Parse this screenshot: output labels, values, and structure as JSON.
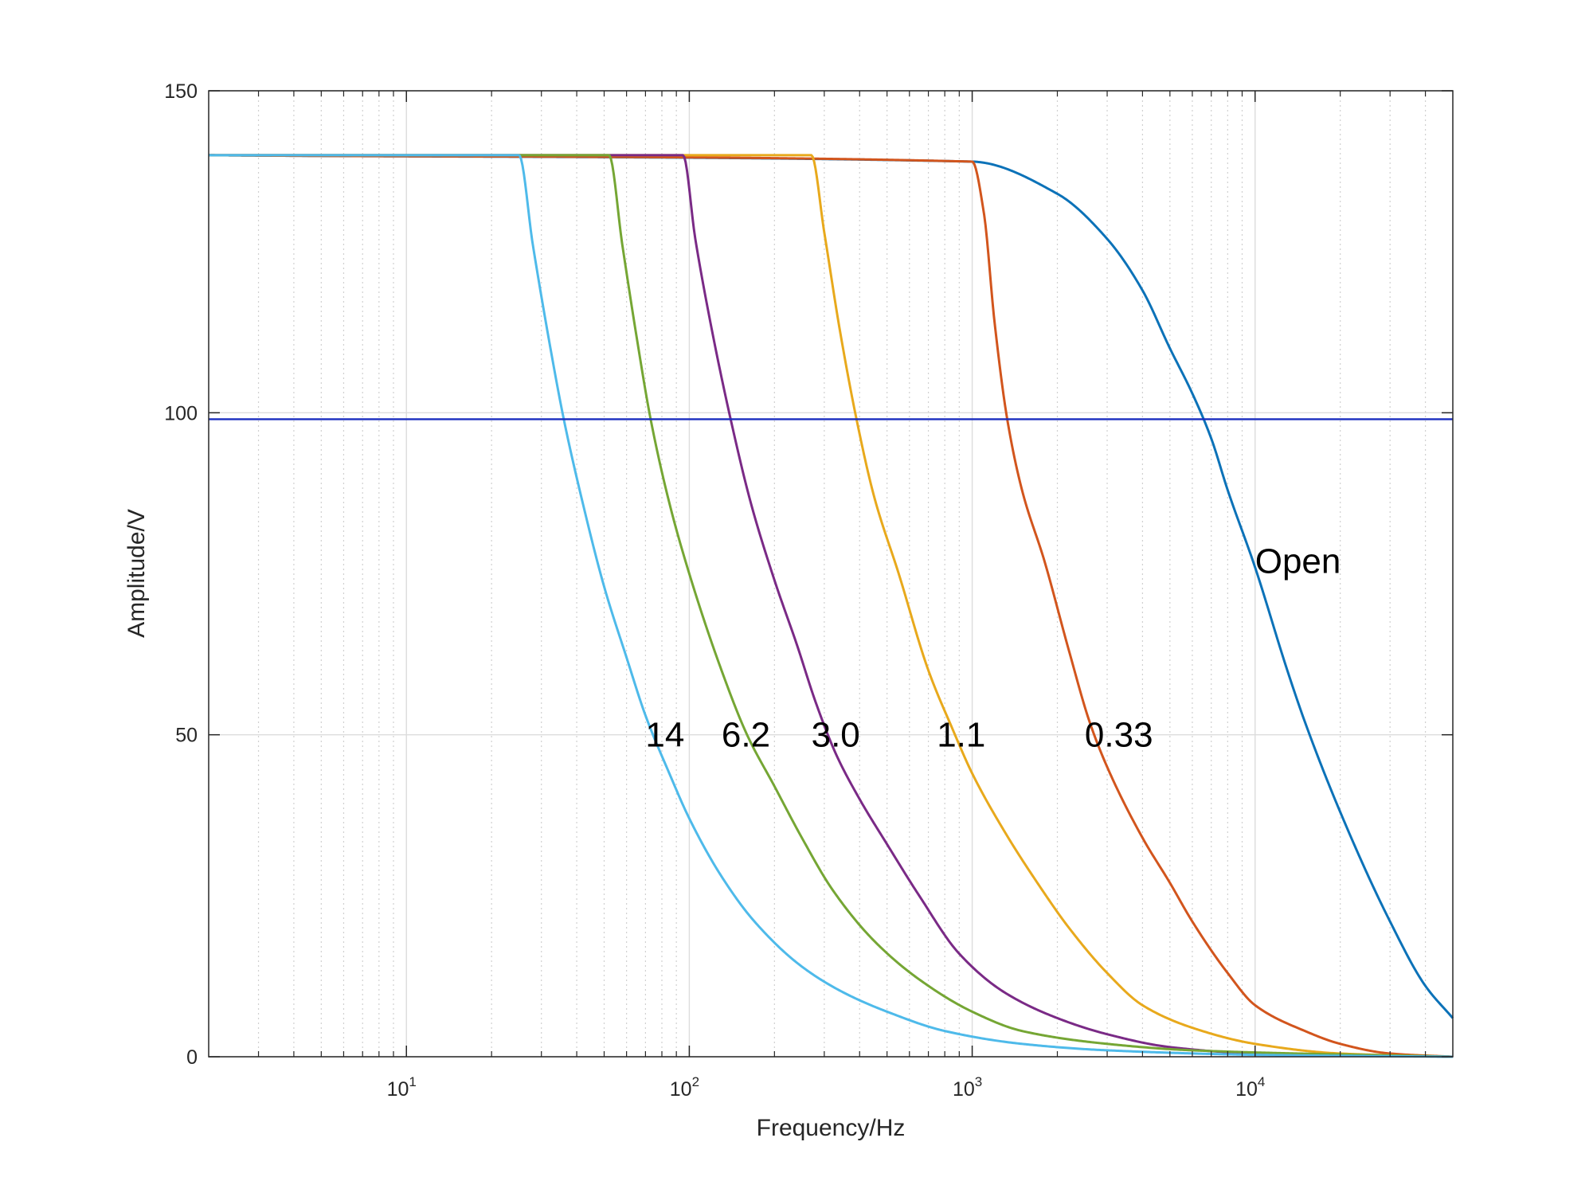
{
  "chart_data": {
    "type": "line",
    "title": "",
    "xlabel": "Frequency/Hz",
    "ylabel": "Amplitude/V",
    "xscale": "log",
    "xlim": [
      2,
      50000
    ],
    "ylim": [
      0,
      150
    ],
    "x_ticks": [
      {
        "value": 10,
        "base": "10",
        "exp": "1"
      },
      {
        "value": 100,
        "base": "10",
        "exp": "2"
      },
      {
        "value": 1000,
        "base": "10",
        "exp": "3"
      },
      {
        "value": 10000,
        "base": "10",
        "exp": "4"
      }
    ],
    "y_ticks": [
      {
        "value": 0,
        "label": "0"
      },
      {
        "value": 50,
        "label": "50"
      },
      {
        "value": 100,
        "label": "100"
      },
      {
        "value": 150,
        "label": "150"
      }
    ],
    "grid": true,
    "minor_grid_x": true,
    "reference_line": {
      "y": 99,
      "color": "#1a2dbf"
    },
    "series": [
      {
        "name": "Open",
        "color": "#0c72b8",
        "points": [
          [
            2,
            140
          ],
          [
            1000,
            139
          ],
          [
            2000,
            134
          ],
          [
            3000,
            127
          ],
          [
            4000,
            119
          ],
          [
            5000,
            110
          ],
          [
            6000,
            103
          ],
          [
            7000,
            96
          ],
          [
            8000,
            88
          ],
          [
            10000,
            76
          ],
          [
            13000,
            60
          ],
          [
            15000,
            52
          ],
          [
            20000,
            38
          ],
          [
            30000,
            21
          ],
          [
            40000,
            11
          ],
          [
            50000,
            6
          ]
        ]
      },
      {
        "name": "0.33",
        "color": "#d2551d",
        "points": [
          [
            2,
            140
          ],
          [
            1000,
            139
          ],
          [
            1100,
            131
          ],
          [
            1200,
            114
          ],
          [
            1330,
            99
          ],
          [
            1500,
            88
          ],
          [
            1800,
            77
          ],
          [
            2200,
            63
          ],
          [
            2600,
            52
          ],
          [
            3000,
            45
          ],
          [
            4000,
            34
          ],
          [
            5000,
            27
          ],
          [
            6000,
            21
          ],
          [
            8000,
            13
          ],
          [
            10000,
            8
          ],
          [
            15000,
            4
          ],
          [
            20000,
            2
          ],
          [
            30000,
            0.5
          ],
          [
            50000,
            0
          ]
        ]
      },
      {
        "name": "1.1",
        "color": "#e8a91c",
        "points": [
          [
            2,
            140
          ],
          [
            270,
            140
          ],
          [
            300,
            128
          ],
          [
            340,
            113
          ],
          [
            390,
            99
          ],
          [
            450,
            87
          ],
          [
            550,
            75
          ],
          [
            700,
            60
          ],
          [
            850,
            51
          ],
          [
            1000,
            44
          ],
          [
            1300,
            35
          ],
          [
            1700,
            27
          ],
          [
            2200,
            20
          ],
          [
            3000,
            13
          ],
          [
            4000,
            8
          ],
          [
            6000,
            4.5
          ],
          [
            10000,
            2
          ],
          [
            20000,
            0.5
          ],
          [
            50000,
            0
          ]
        ]
      },
      {
        "name": "3.0",
        "color": "#7a2a86",
        "points": [
          [
            2,
            140
          ],
          [
            95,
            140
          ],
          [
            105,
            127
          ],
          [
            120,
            113
          ],
          [
            140,
            99
          ],
          [
            165,
            86
          ],
          [
            200,
            74
          ],
          [
            240,
            64
          ],
          [
            280,
            55
          ],
          [
            330,
            47
          ],
          [
            400,
            40
          ],
          [
            500,
            33
          ],
          [
            650,
            25
          ],
          [
            900,
            16
          ],
          [
            1300,
            10
          ],
          [
            2000,
            6
          ],
          [
            3000,
            3.5
          ],
          [
            5000,
            1.5
          ],
          [
            10000,
            0.5
          ],
          [
            50000,
            0
          ]
        ]
      },
      {
        "name": "6.2",
        "color": "#75a634",
        "points": [
          [
            2,
            140
          ],
          [
            52,
            140
          ],
          [
            58,
            126
          ],
          [
            65,
            112
          ],
          [
            73,
            99
          ],
          [
            85,
            86
          ],
          [
            100,
            75
          ],
          [
            130,
            60
          ],
          [
            160,
            50
          ],
          [
            200,
            42
          ],
          [
            250,
            34
          ],
          [
            320,
            26
          ],
          [
            450,
            18
          ],
          [
            650,
            12
          ],
          [
            1000,
            7
          ],
          [
            1500,
            4
          ],
          [
            3000,
            2
          ],
          [
            6000,
            1
          ],
          [
            50000,
            0
          ]
        ]
      },
      {
        "name": "14",
        "color": "#4ebaea",
        "points": [
          [
            2,
            140
          ],
          [
            25,
            140
          ],
          [
            28,
            126
          ],
          [
            32,
            111
          ],
          [
            36,
            99
          ],
          [
            42,
            86
          ],
          [
            50,
            73
          ],
          [
            60,
            62
          ],
          [
            70,
            53
          ],
          [
            85,
            44
          ],
          [
            100,
            37
          ],
          [
            130,
            28
          ],
          [
            170,
            21
          ],
          [
            250,
            14
          ],
          [
            350,
            10
          ],
          [
            500,
            7
          ],
          [
            800,
            4
          ],
          [
            1500,
            2
          ],
          [
            3000,
            1
          ],
          [
            10000,
            0.3
          ],
          [
            50000,
            0
          ]
        ]
      }
    ],
    "annotations": [
      {
        "text": "Open",
        "x": 10000,
        "y": 77
      },
      {
        "text": "0.33",
        "x": 2500,
        "y": 50
      },
      {
        "text": "1.1",
        "x": 750,
        "y": 50
      },
      {
        "text": "3.0",
        "x": 270,
        "y": 50
      },
      {
        "text": "6.2",
        "x": 130,
        "y": 50
      },
      {
        "text": "14",
        "x": 70,
        "y": 50
      }
    ]
  }
}
